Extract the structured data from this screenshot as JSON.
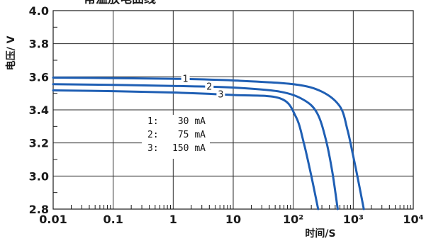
{
  "chart_data": {
    "type": "line",
    "title": "常温放电曲线",
    "xlabel": "时间/S",
    "ylabel": "电压/ V",
    "xscale": "log",
    "xlim": [
      0.01,
      10000
    ],
    "ylim": [
      2.8,
      4.0
    ],
    "xticks": [
      0.01,
      0.1,
      1,
      10,
      100,
      1000,
      10000
    ],
    "xtick_labels": [
      "0.01",
      "0.1",
      "1",
      "10",
      "10²",
      "10³",
      "10⁴"
    ],
    "yticks": [
      2.8,
      3.0,
      3.2,
      3.4,
      3.6,
      3.8,
      4.0
    ],
    "ytick_labels": [
      "2.8",
      "3.0",
      "3.2",
      "3.4",
      "3.6",
      "3.8",
      "4.0"
    ],
    "grid": true,
    "line_color": "#1f5fb4",
    "series": [
      {
        "name": "1",
        "label": "1",
        "x": [
          0.01,
          0.1,
          1,
          10,
          100,
          300,
          600,
          800,
          1000,
          1200,
          1500
        ],
        "y": [
          3.595,
          3.592,
          3.588,
          3.578,
          3.555,
          3.51,
          3.42,
          3.28,
          3.12,
          2.98,
          2.8
        ]
      },
      {
        "name": "2",
        "label": "2",
        "x": [
          0.01,
          0.1,
          1,
          10,
          60,
          150,
          250,
          350,
          450,
          550
        ],
        "y": [
          3.555,
          3.551,
          3.545,
          3.535,
          3.51,
          3.46,
          3.38,
          3.22,
          3.02,
          2.8
        ]
      },
      {
        "name": "3",
        "label": "3",
        "x": [
          0.01,
          0.1,
          1,
          10,
          60,
          110,
          150,
          200,
          260
        ],
        "y": [
          3.518,
          3.513,
          3.505,
          3.49,
          3.47,
          3.36,
          3.2,
          3.0,
          2.8
        ]
      }
    ],
    "legend": {
      "position": "center-left",
      "entries": [
        {
          "key": "1:",
          "value": "30 mA"
        },
        {
          "key": "2:",
          "value": "75 mA"
        },
        {
          "key": "3:",
          "value": "150 mA"
        }
      ]
    }
  }
}
